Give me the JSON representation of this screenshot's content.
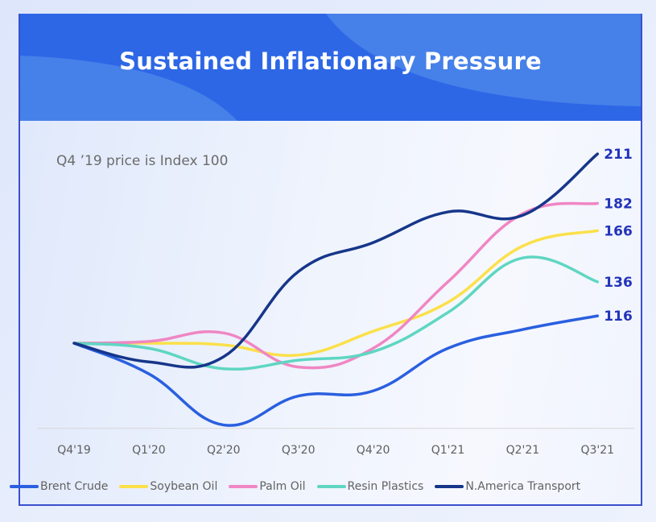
{
  "page": {
    "title": "Sustained Inflationary Pressure",
    "subtitle": "Q4 ’19 price is Index 100",
    "header_color": "#2d67e6",
    "label_color": "#2233bb"
  },
  "chart_data": {
    "type": "line",
    "title": "Sustained Inflationary Pressure",
    "subtitle": "Q4 ’19 price is Index 100",
    "xlabel": "",
    "ylabel": "",
    "categories": [
      "Q4'19",
      "Q1'20",
      "Q2'20",
      "Q3'20",
      "Q4'20",
      "Q1'21",
      "Q2'21",
      "Q3'21"
    ],
    "ylim": [
      50,
      215
    ],
    "grid": false,
    "legend_position": "bottom",
    "series": [
      {
        "name": "Brent Crude",
        "color": "#2a5fe0",
        "values": [
          100,
          82,
          52,
          69,
          72,
          97,
          108,
          116
        ],
        "end_label": "116"
      },
      {
        "name": "Soybean Oil",
        "color": "#fbe04a",
        "values": [
          100,
          100,
          99,
          93,
          107,
          124,
          157,
          166
        ],
        "end_label": "166"
      },
      {
        "name": "Palm Oil",
        "color": "#f086c4",
        "values": [
          100,
          101,
          106,
          86,
          97,
          136,
          176,
          182
        ],
        "end_label": "182"
      },
      {
        "name": "Resin Plastics",
        "color": "#5fd6c2",
        "values": [
          100,
          97,
          85,
          90,
          95,
          118,
          150,
          136
        ],
        "end_label": "136"
      },
      {
        "name": "N.America Transport",
        "color": "#16368a",
        "values": [
          100,
          89,
          92,
          142,
          159,
          177,
          175,
          211
        ],
        "end_label": "211"
      }
    ]
  }
}
